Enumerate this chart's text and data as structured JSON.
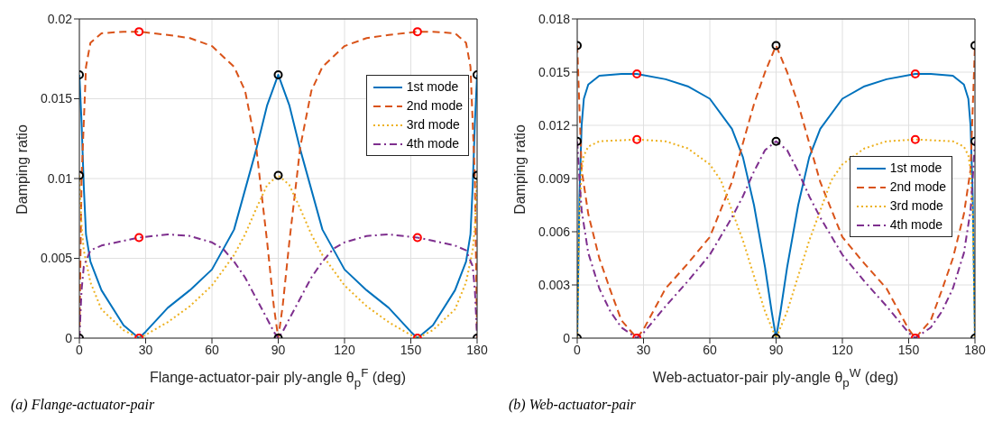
{
  "chart_data": [
    {
      "type": "line",
      "xlabel": "Flange-actuator-pair ply-angle θ$_{p}$$^{F}$ (deg)",
      "ylabel": "Damping ratio",
      "xlim": [
        0,
        180
      ],
      "xticks": [
        0,
        30,
        60,
        90,
        120,
        150,
        180
      ],
      "ylim": [
        0,
        0.02
      ],
      "yticks": [
        0,
        0.005,
        0.01,
        0.015,
        0.02
      ],
      "grid": true,
      "legend": "top right",
      "annotations": [
        "(a) Flange-actuator-pair"
      ],
      "series": [
        {
          "name": "1st mode",
          "color": "#0072bd",
          "line_style": "solid",
          "marker": "none",
          "x": [
            0,
            1,
            2,
            3,
            5,
            10,
            20,
            27,
            30,
            40,
            50,
            60,
            70,
            80,
            85,
            90,
            95,
            100,
            110,
            120,
            130,
            140,
            150,
            153,
            160,
            170,
            175,
            177,
            178,
            179,
            180
          ],
          "values": [
            0.0165,
            0.0135,
            0.0095,
            0.0065,
            0.0048,
            0.003,
            0.0008,
            0,
            0.0004,
            0.0019,
            0.003,
            0.0043,
            0.0068,
            0.0118,
            0.0146,
            0.0165,
            0.0146,
            0.0118,
            0.0068,
            0.0043,
            0.003,
            0.0019,
            0.0004,
            0,
            0.0008,
            0.003,
            0.0048,
            0.0065,
            0.0095,
            0.0135,
            0.0165
          ]
        },
        {
          "name": "2nd mode",
          "color": "#d95319",
          "line_style": "dashed",
          "marker": "none",
          "x": [
            0,
            1,
            3,
            5,
            10,
            20,
            27,
            40,
            50,
            60,
            70,
            75,
            80,
            85,
            88,
            90,
            92,
            95,
            100,
            105,
            110,
            120,
            130,
            140,
            153,
            160,
            170,
            175,
            177,
            179,
            180
          ],
          "values": [
            0,
            0.01,
            0.017,
            0.0185,
            0.0191,
            0.0192,
            0.0192,
            0.019,
            0.0188,
            0.0183,
            0.017,
            0.0155,
            0.012,
            0.006,
            0.002,
            0,
            0.002,
            0.006,
            0.012,
            0.0155,
            0.017,
            0.0183,
            0.0188,
            0.019,
            0.0192,
            0.0192,
            0.0191,
            0.0185,
            0.017,
            0.01,
            0
          ]
        },
        {
          "name": "3rd mode",
          "color": "#edb120",
          "line_style": "dotted",
          "marker": "none",
          "x": [
            0,
            1,
            2,
            5,
            10,
            20,
            27,
            30,
            40,
            50,
            60,
            70,
            75,
            80,
            85,
            90,
            95,
            100,
            105,
            110,
            120,
            130,
            140,
            150,
            153,
            160,
            170,
            175,
            178,
            179,
            180
          ],
          "values": [
            0.0102,
            0.007,
            0.0055,
            0.0035,
            0.0018,
            0.0005,
            0,
            0.0002,
            0.001,
            0.002,
            0.0033,
            0.0052,
            0.0065,
            0.0081,
            0.0096,
            0.0102,
            0.0096,
            0.0081,
            0.0065,
            0.0052,
            0.0033,
            0.002,
            0.001,
            0.0002,
            0,
            0.0005,
            0.0018,
            0.0035,
            0.0055,
            0.007,
            0.0102
          ]
        },
        {
          "name": "4th mode",
          "color": "#7e2f8e",
          "line_style": "dashdot",
          "marker": "none",
          "x": [
            0,
            1,
            2,
            5,
            10,
            20,
            27,
            40,
            50,
            60,
            65,
            70,
            75,
            80,
            85,
            88,
            90,
            92,
            95,
            100,
            105,
            110,
            115,
            120,
            130,
            140,
            153,
            160,
            170,
            175,
            178,
            179,
            180
          ],
          "values": [
            0,
            0.003,
            0.0045,
            0.0055,
            0.0058,
            0.0061,
            0.0063,
            0.0065,
            0.0064,
            0.006,
            0.0056,
            0.0048,
            0.0038,
            0.0025,
            0.0012,
            0.0004,
            0,
            0.0004,
            0.0012,
            0.0025,
            0.0038,
            0.0048,
            0.0056,
            0.006,
            0.0064,
            0.0065,
            0.0063,
            0.0061,
            0.0058,
            0.0055,
            0.0045,
            0.003,
            0
          ]
        },
        {
          "type": "scatter",
          "color": "#000000",
          "marker": "circle",
          "x": [
            0,
            0,
            0,
            90,
            90,
            90,
            180,
            180,
            180
          ],
          "values": [
            0.0165,
            0.0102,
            0,
            0.0165,
            0.0102,
            0,
            0.0165,
            0.0102,
            0
          ]
        },
        {
          "type": "scatter",
          "color": "#ff0000",
          "marker": "circle",
          "x": [
            27,
            27,
            27,
            153,
            153,
            153
          ],
          "values": [
            0.0192,
            0.0063,
            0,
            0.0192,
            0.0063,
            0
          ]
        }
      ]
    },
    {
      "type": "line",
      "xlabel": "Web-actuator-pair ply-angle θ$_{p}$$^{W}$ (deg)",
      "ylabel": "Damping ratio",
      "xlim": [
        0,
        180
      ],
      "xticks": [
        0,
        30,
        60,
        90,
        120,
        150,
        180
      ],
      "ylim": [
        0,
        0.018
      ],
      "yticks": [
        0,
        0.003,
        0.006,
        0.009,
        0.012,
        0.015,
        0.018
      ],
      "grid": true,
      "legend": "right",
      "annotations": [
        "(b) Web-actuator-pair"
      ],
      "series": [
        {
          "name": "1st mode",
          "color": "#0072bd",
          "line_style": "solid",
          "marker": "none",
          "x": [
            0,
            1,
            2,
            3,
            5,
            10,
            20,
            27,
            40,
            50,
            60,
            70,
            75,
            80,
            85,
            88,
            90,
            92,
            95,
            100,
            105,
            110,
            120,
            130,
            140,
            153,
            160,
            170,
            175,
            177,
            178,
            179,
            180
          ],
          "values": [
            0,
            0.008,
            0.012,
            0.0135,
            0.0143,
            0.0148,
            0.0149,
            0.0149,
            0.0146,
            0.0142,
            0.0135,
            0.0118,
            0.0102,
            0.0075,
            0.004,
            0.0015,
            0,
            0.0015,
            0.004,
            0.0075,
            0.0102,
            0.0118,
            0.0135,
            0.0142,
            0.0146,
            0.0149,
            0.0149,
            0.0148,
            0.0143,
            0.0135,
            0.012,
            0.008,
            0
          ]
        },
        {
          "name": "2nd mode",
          "color": "#d95319",
          "line_style": "dashed",
          "marker": "none",
          "x": [
            0,
            1,
            2,
            5,
            10,
            15,
            20,
            27,
            30,
            40,
            50,
            60,
            70,
            75,
            80,
            85,
            90,
            95,
            100,
            105,
            110,
            120,
            130,
            140,
            150,
            153,
            160,
            165,
            170,
            175,
            178,
            179,
            180
          ],
          "values": [
            0.0165,
            0.013,
            0.0095,
            0.007,
            0.0045,
            0.0027,
            0.001,
            0,
            0.0005,
            0.0028,
            0.0042,
            0.0057,
            0.0088,
            0.011,
            0.0132,
            0.015,
            0.0165,
            0.015,
            0.0132,
            0.011,
            0.0088,
            0.0057,
            0.0042,
            0.0028,
            0.0005,
            0,
            0.001,
            0.0027,
            0.0045,
            0.007,
            0.0095,
            0.013,
            0.0165
          ]
        },
        {
          "name": "3rd mode",
          "color": "#edb120",
          "line_style": "dotted",
          "marker": "none",
          "x": [
            0,
            1,
            2,
            3,
            5,
            10,
            27,
            40,
            50,
            60,
            65,
            70,
            75,
            80,
            85,
            90,
            95,
            100,
            105,
            110,
            115,
            120,
            130,
            140,
            153,
            170,
            175,
            177,
            178,
            179,
            180
          ],
          "values": [
            0,
            0.007,
            0.0095,
            0.0103,
            0.0108,
            0.0111,
            0.0112,
            0.0111,
            0.0107,
            0.0098,
            0.0089,
            0.0072,
            0.0055,
            0.0035,
            0.0015,
            0,
            0.0015,
            0.0035,
            0.0055,
            0.0072,
            0.0089,
            0.0098,
            0.0107,
            0.0111,
            0.0112,
            0.0111,
            0.0108,
            0.0103,
            0.0095,
            0.007,
            0
          ]
        },
        {
          "name": "4th mode",
          "color": "#7e2f8e",
          "line_style": "dashdot",
          "marker": "none",
          "x": [
            0,
            1,
            2,
            5,
            10,
            15,
            20,
            27,
            30,
            40,
            50,
            60,
            70,
            75,
            80,
            85,
            90,
            95,
            100,
            105,
            110,
            120,
            130,
            140,
            150,
            153,
            160,
            165,
            170,
            175,
            178,
            179,
            180
          ],
          "values": [
            0.0111,
            0.009,
            0.0072,
            0.0048,
            0.0028,
            0.0015,
            0.0006,
            0,
            0.0003,
            0.0018,
            0.0032,
            0.0047,
            0.0068,
            0.008,
            0.0094,
            0.0106,
            0.0111,
            0.0106,
            0.0094,
            0.008,
            0.0068,
            0.0047,
            0.0032,
            0.0018,
            0.0003,
            0,
            0.0006,
            0.0015,
            0.0028,
            0.0048,
            0.0072,
            0.009,
            0.0111
          ]
        },
        {
          "type": "scatter",
          "color": "#000000",
          "marker": "circle",
          "x": [
            0,
            0,
            0,
            90,
            90,
            90,
            180,
            180,
            180
          ],
          "values": [
            0.0165,
            0.0111,
            0,
            0.0165,
            0.0111,
            0,
            0.0165,
            0.0111,
            0
          ]
        },
        {
          "type": "scatter",
          "color": "#ff0000",
          "marker": "circle",
          "x": [
            27,
            27,
            27,
            153,
            153,
            153
          ],
          "values": [
            0.0149,
            0.0112,
            0,
            0.0149,
            0.0112,
            0
          ]
        }
      ]
    }
  ]
}
